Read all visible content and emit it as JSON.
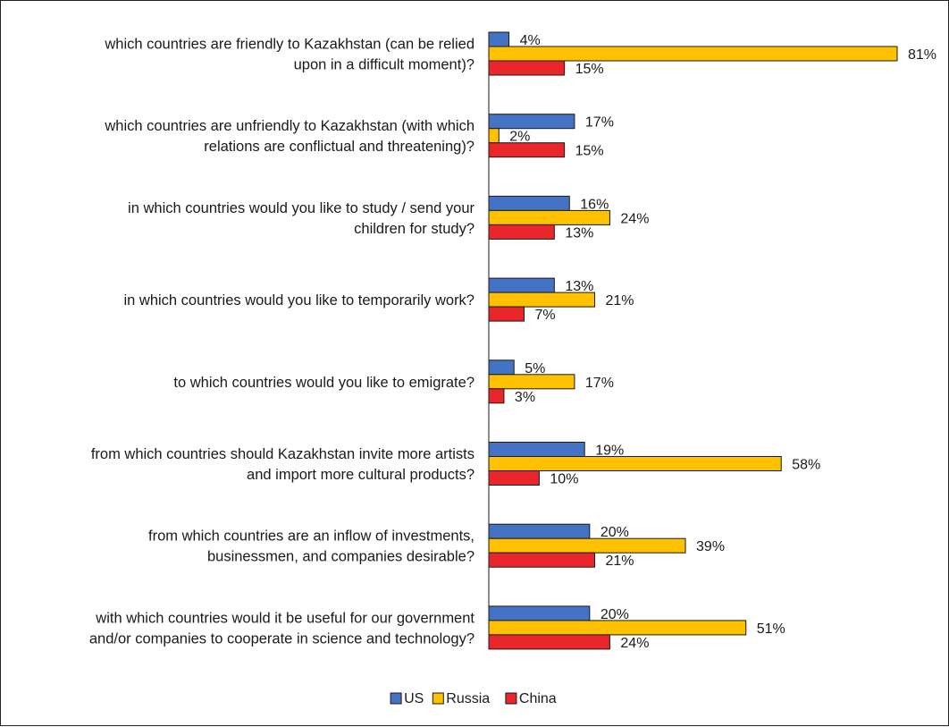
{
  "chart_data": {
    "type": "bar",
    "orientation": "horizontal",
    "categories": [
      [
        "which countries are friendly to Kazakhstan (can be relied",
        "upon in a difficult moment)?"
      ],
      [
        "which countries are unfriendly to Kazakhstan (with which",
        "relations are conflictual and threatening)?"
      ],
      [
        "in which countries would you like to study / send your",
        "children for study?"
      ],
      [
        "in which countries would you like to temporarily work?"
      ],
      [
        "to which countries would you like to emigrate?"
      ],
      [
        "from which countries should Kazakhstan invite more artists",
        "and import more cultural products?"
      ],
      [
        "from which countries are an inflow of investments,",
        "businessmen, and companies desirable?"
      ],
      [
        "with which countries would it be useful for our government",
        "and/or companies to cooperate in science and technology?"
      ]
    ],
    "series": [
      {
        "name": "US",
        "color": "#4472C4",
        "values": [
          4,
          17,
          16,
          13,
          5,
          19,
          20,
          20
        ]
      },
      {
        "name": "Russia",
        "color": "#FFC000",
        "values": [
          81,
          2,
          24,
          21,
          17,
          58,
          39,
          51
        ]
      },
      {
        "name": "China",
        "color": "#E8262B",
        "values": [
          15,
          15,
          13,
          7,
          3,
          10,
          21,
          24
        ]
      }
    ],
    "value_suffix": "%",
    "xlim": [
      0,
      100
    ],
    "grid": false,
    "legend": "bottom-center"
  }
}
